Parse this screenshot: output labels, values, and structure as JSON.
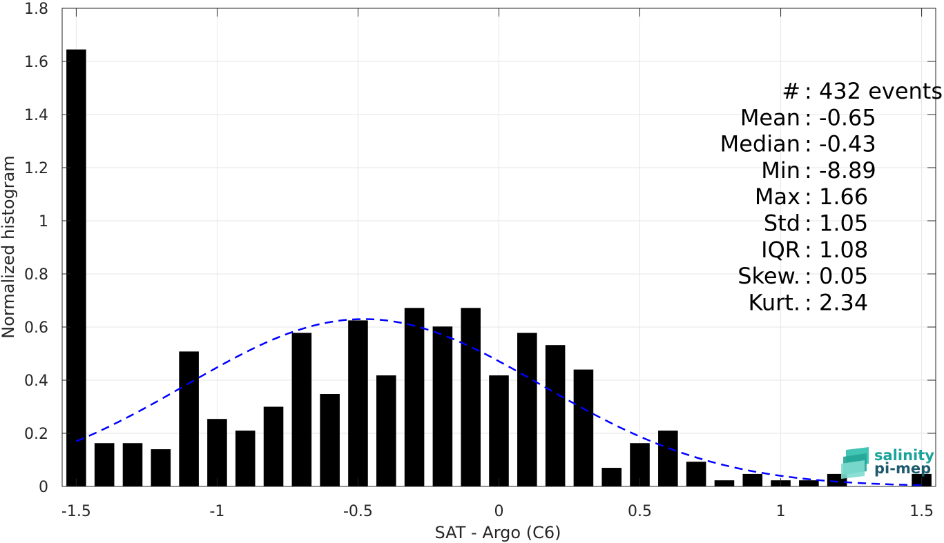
{
  "chart_data": {
    "type": "bar",
    "xlabel": "SAT - Argo (C6)",
    "ylabel": "Normalized histogram",
    "xlim": [
      -1.55,
      1.55
    ],
    "ylim": [
      0,
      1.8
    ],
    "grid": true,
    "x_ticks": [
      -1.5,
      -1,
      -0.5,
      0,
      0.5,
      1,
      1.5
    ],
    "x_tick_labels": [
      "-1.5",
      "-1",
      "-0.5",
      "0",
      "0.5",
      "1",
      "1.5"
    ],
    "y_ticks": [
      0,
      0.2,
      0.4,
      0.6,
      0.8,
      1,
      1.2,
      1.4,
      1.6,
      1.8
    ],
    "y_tick_labels": [
      "0",
      "0.2",
      "0.4",
      "0.6",
      "0.8",
      "1",
      "1.2",
      "1.4",
      "1.6",
      "1.8"
    ],
    "bin_width": 0.1,
    "bar_fraction": 0.7,
    "bar_color": "#000000",
    "bars": [
      {
        "x": -1.5,
        "y": 1.645
      },
      {
        "x": -1.4,
        "y": 0.163
      },
      {
        "x": -1.3,
        "y": 0.163
      },
      {
        "x": -1.2,
        "y": 0.14
      },
      {
        "x": -1.1,
        "y": 0.508
      },
      {
        "x": -1.0,
        "y": 0.254
      },
      {
        "x": -0.9,
        "y": 0.21
      },
      {
        "x": -0.8,
        "y": 0.3
      },
      {
        "x": -0.7,
        "y": 0.578
      },
      {
        "x": -0.6,
        "y": 0.348
      },
      {
        "x": -0.5,
        "y": 0.625
      },
      {
        "x": -0.4,
        "y": 0.418
      },
      {
        "x": -0.3,
        "y": 0.672
      },
      {
        "x": -0.2,
        "y": 0.602
      },
      {
        "x": -0.1,
        "y": 0.672
      },
      {
        "x": 0.0,
        "y": 0.418
      },
      {
        "x": 0.1,
        "y": 0.578
      },
      {
        "x": 0.2,
        "y": 0.532
      },
      {
        "x": 0.3,
        "y": 0.44
      },
      {
        "x": 0.4,
        "y": 0.07
      },
      {
        "x": 0.5,
        "y": 0.163
      },
      {
        "x": 0.6,
        "y": 0.21
      },
      {
        "x": 0.7,
        "y": 0.093
      },
      {
        "x": 0.8,
        "y": 0.023
      },
      {
        "x": 0.9,
        "y": 0.047
      },
      {
        "x": 1.0,
        "y": 0.023
      },
      {
        "x": 1.1,
        "y": 0.023
      },
      {
        "x": 1.2,
        "y": 0.047
      },
      {
        "x": 1.3,
        "y": 0.0
      },
      {
        "x": 1.4,
        "y": 0.0
      },
      {
        "x": 1.5,
        "y": 0.047
      }
    ],
    "fit_curve": {
      "style": "dashed",
      "color": "#0000ff",
      "mean": -0.48,
      "std": 0.63,
      "x_range": [
        -1.5,
        1.5
      ]
    },
    "stats": [
      {
        "label": "#  ",
        "value": "432 events"
      },
      {
        "label": "Mean",
        "value": "-0.65"
      },
      {
        "label": "Median",
        "value": "-0.43"
      },
      {
        "label": "Min",
        "value": "-8.89"
      },
      {
        "label": "Max",
        "value": "1.66"
      },
      {
        "label": "Std",
        "value": "1.05"
      },
      {
        "label": "IQR",
        "value": "1.08"
      },
      {
        "label": "Skew.",
        "value": "0.05"
      },
      {
        "label": "Kurt.",
        "value": "2.34"
      }
    ]
  },
  "logo": {
    "line1": "salinity",
    "line2": "pi-mep",
    "colors": {
      "line1": "#1aa39a",
      "line2": "#1d5a6e",
      "mark": "#25b5a6"
    }
  }
}
